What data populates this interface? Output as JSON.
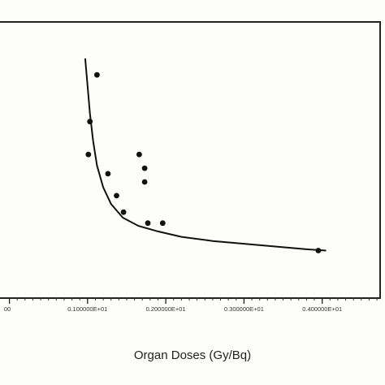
{
  "chart_data": {
    "type": "scatter",
    "xlabel": "Organ Doses (Gy/Bq)",
    "x_tick_labels": [
      "00",
      "0.100000E+01",
      "0.200000E+01",
      "0.300000E+01",
      "0.400000E+01"
    ],
    "x_ticks": [
      0,
      1,
      2,
      3,
      4
    ],
    "xlim": [
      -0.12,
      4.72
    ],
    "ylim": [
      0,
      100
    ],
    "grid": false,
    "points": [
      {
        "x": 1.12,
        "y": 81
      },
      {
        "x": 1.03,
        "y": 64
      },
      {
        "x": 1.01,
        "y": 52
      },
      {
        "x": 1.26,
        "y": 45
      },
      {
        "x": 1.37,
        "y": 37
      },
      {
        "x": 1.46,
        "y": 31
      },
      {
        "x": 1.66,
        "y": 52
      },
      {
        "x": 1.73,
        "y": 47
      },
      {
        "x": 1.73,
        "y": 42
      },
      {
        "x": 1.77,
        "y": 27
      },
      {
        "x": 1.96,
        "y": 27
      },
      {
        "x": 3.95,
        "y": 17
      }
    ],
    "fit_line": {
      "x": [
        0.97,
        1.0,
        1.03,
        1.07,
        1.12,
        1.2,
        1.3,
        1.45,
        1.65,
        1.9,
        2.2,
        2.6,
        3.0,
        3.4,
        3.8,
        4.05
      ],
      "y": [
        87,
        77,
        67,
        57,
        48,
        40,
        34,
        29,
        26,
        24,
        22,
        20.5,
        19.5,
        18.5,
        17.5,
        17
      ]
    }
  }
}
